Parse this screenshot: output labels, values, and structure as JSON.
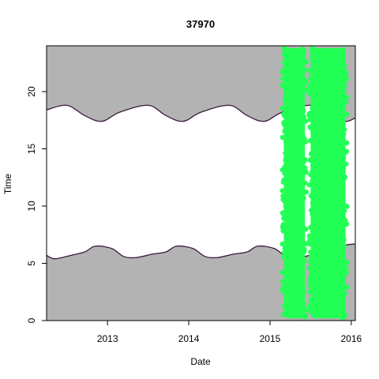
{
  "chart_data": {
    "type": "area",
    "title": "37970",
    "xlabel": "Date",
    "ylabel": "Time",
    "xlim": [
      2012.25,
      2016.05
    ],
    "ylim": [
      0,
      24
    ],
    "x_ticks": [
      2013,
      2014,
      2015,
      2016
    ],
    "y_ticks": [
      0,
      5,
      10,
      15,
      20
    ],
    "night_fill_color": "#b3b3b3",
    "boundary_line_color": "#3b1a3b",
    "observation_color": "#22ff55",
    "sunrise_curve": {
      "x": [
        2012.25,
        2012.35,
        2012.55,
        2012.72,
        2012.85,
        2013.05,
        2013.2,
        2013.35,
        2013.55,
        2013.72,
        2013.85,
        2014.05,
        2014.2,
        2014.35,
        2014.55,
        2014.72,
        2014.85,
        2015.05,
        2015.2,
        2015.35,
        2015.55,
        2015.72,
        2015.85,
        2016.05
      ],
      "y": [
        5.7,
        5.4,
        5.7,
        6.0,
        6.5,
        6.3,
        5.6,
        5.5,
        5.8,
        6.0,
        6.5,
        6.3,
        5.6,
        5.5,
        5.8,
        6.0,
        6.5,
        6.3,
        5.6,
        5.5,
        5.8,
        6.0,
        6.5,
        6.7
      ]
    },
    "sunset_curve": {
      "x": [
        2012.25,
        2012.5,
        2012.72,
        2012.93,
        2013.15,
        2013.5,
        2013.72,
        2013.93,
        2014.15,
        2014.5,
        2014.72,
        2014.93,
        2015.15,
        2015.5,
        2015.72,
        2015.93,
        2016.05
      ],
      "y": [
        18.4,
        18.8,
        17.9,
        17.4,
        18.2,
        18.8,
        17.9,
        17.4,
        18.2,
        18.8,
        17.9,
        17.4,
        18.2,
        18.8,
        17.9,
        17.4,
        17.7
      ]
    },
    "observation_bands": [
      {
        "x_start": 2015.17,
        "x_end": 2015.43,
        "y_min": 0.2,
        "y_max": 23.8
      },
      {
        "x_start": 2015.5,
        "x_end": 2015.93,
        "y_min": 0.2,
        "y_max": 23.8
      }
    ]
  }
}
